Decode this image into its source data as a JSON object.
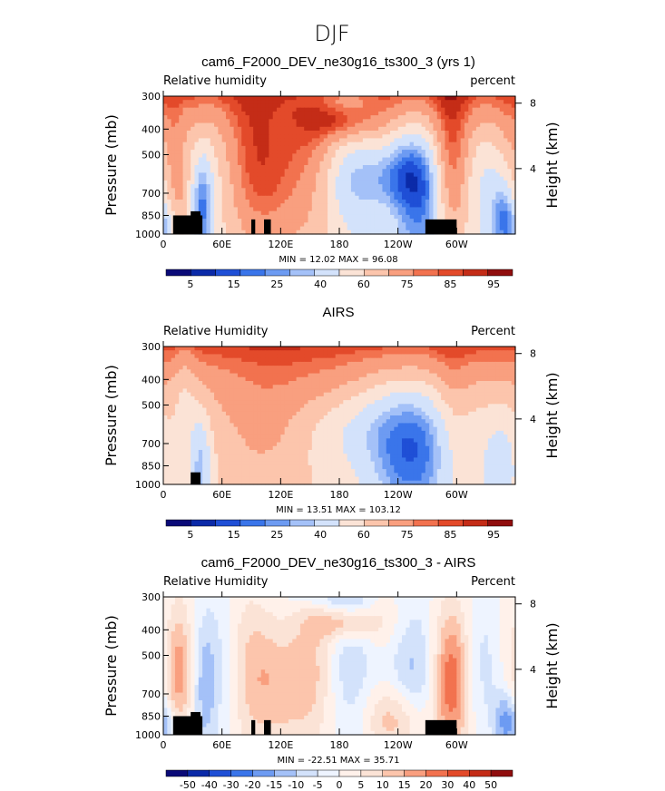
{
  "figure_title": "DJF",
  "colors": {
    "model_obs_scale": [
      "#0a0a78",
      "#0b2aa8",
      "#1f4fd6",
      "#3a75ea",
      "#6d9bf2",
      "#a4c1f8",
      "#d3e2fb",
      "#fbe3d6",
      "#fcc5ac",
      "#f99f7f",
      "#f2724f",
      "#e34a2a",
      "#c42c17",
      "#900e0e"
    ],
    "diff_scale": [
      "#0a0a78",
      "#0b2aa8",
      "#1f4fd6",
      "#3a75ea",
      "#6d9bf2",
      "#a4c1f8",
      "#d3e2fb",
      "#eef4ff",
      "#fff1ea",
      "#fbe3d6",
      "#fcc5ac",
      "#f99f7f",
      "#f2724f",
      "#e34a2a",
      "#c42c17",
      "#900e0e"
    ],
    "land": "#000000"
  },
  "chart_data": [
    {
      "type": "heatmap",
      "title": "cam6_F2000_DEV_ne30g16_ts300_3 (yrs 1)",
      "left_label": "Relative humidity",
      "right_label": "percent",
      "ylabel": "Pressure (mb)",
      "y2label": "Height (km)",
      "xlim": [
        0,
        360
      ],
      "ylim": [
        1000,
        300
      ],
      "x_ticks": [
        "0",
        "60E",
        "120E",
        "180",
        "120W",
        "60W"
      ],
      "x_tick_values": [
        0,
        60,
        120,
        180,
        240,
        300
      ],
      "y_ticks": [
        "300",
        "400",
        "500",
        "700",
        "850",
        "1000"
      ],
      "y_tick_values": [
        300,
        400,
        500,
        700,
        850,
        1000
      ],
      "y2_ticks": [
        "8",
        "4"
      ],
      "y2_tick_values": [
        8,
        4
      ],
      "min_max_text": "MIN =   12.02   MAX =   96.08",
      "min": 12.02,
      "max": 96.08,
      "colorbar_levels": [
        "5",
        "15",
        "25",
        "40",
        "60",
        "75",
        "85",
        "95"
      ],
      "colorbar_levels_full": [
        5,
        10,
        15,
        20,
        25,
        30,
        40,
        50,
        60,
        70,
        75,
        80,
        85,
        90,
        95
      ],
      "field": "model",
      "terrain": [
        [
          10,
          40,
          850
        ],
        [
          28,
          38,
          820
        ],
        [
          90,
          94,
          880
        ],
        [
          103,
          110,
          880
        ],
        [
          268,
          300,
          880
        ]
      ]
    },
    {
      "type": "heatmap",
      "title": "AIRS",
      "left_label": "Relative Humidity",
      "right_label": "Percent",
      "ylabel": "Pressure (mb)",
      "y2label": "Height (km)",
      "xlim": [
        0,
        360
      ],
      "ylim": [
        1000,
        300
      ],
      "x_ticks": [
        "0",
        "60E",
        "120E",
        "180",
        "120W",
        "60W"
      ],
      "x_tick_values": [
        0,
        60,
        120,
        180,
        240,
        300
      ],
      "y_ticks": [
        "300",
        "400",
        "500",
        "700",
        "850",
        "1000"
      ],
      "y_tick_values": [
        300,
        400,
        500,
        700,
        850,
        1000
      ],
      "y2_ticks": [
        "8",
        "4"
      ],
      "y2_tick_values": [
        8,
        4
      ],
      "min_max_text": "MIN =   13.51   MAX =  103.12",
      "min": 13.51,
      "max": 103.12,
      "colorbar_levels": [
        "5",
        "15",
        "25",
        "40",
        "60",
        "75",
        "85",
        "95"
      ],
      "colorbar_levels_full": [
        5,
        10,
        15,
        20,
        25,
        30,
        40,
        50,
        60,
        70,
        75,
        80,
        85,
        90,
        95
      ],
      "field": "obs",
      "terrain": [
        [
          28,
          38,
          900
        ]
      ]
    },
    {
      "type": "heatmap",
      "title": "cam6_F2000_DEV_ne30g16_ts300_3 - AIRS",
      "left_label": "Relative Humidity",
      "right_label": "Percent",
      "ylabel": "Pressure (mb)",
      "y2label": "Height (km)",
      "xlim": [
        0,
        360
      ],
      "ylim": [
        1000,
        300
      ],
      "x_ticks": [
        "0",
        "60E",
        "120E",
        "180",
        "120W",
        "60W"
      ],
      "x_tick_values": [
        0,
        60,
        120,
        180,
        240,
        300
      ],
      "y_ticks": [
        "300",
        "400",
        "500",
        "700",
        "850",
        "1000"
      ],
      "y_tick_values": [
        300,
        400,
        500,
        700,
        850,
        1000
      ],
      "y2_ticks": [
        "8",
        "4"
      ],
      "y2_tick_values": [
        8,
        4
      ],
      "min_max_text": "MIN =  -22.51   MAX =   35.71",
      "min": -22.51,
      "max": 35.71,
      "colorbar_levels": [
        "-50",
        "-40",
        "-30",
        "-20",
        "-15",
        "-10",
        "-5",
        "0",
        "5",
        "10",
        "15",
        "20",
        "30",
        "40",
        "50"
      ],
      "colorbar_levels_full": [
        -50,
        -40,
        -30,
        -20,
        -15,
        -10,
        -5,
        0,
        5,
        10,
        15,
        20,
        30,
        40,
        50
      ],
      "field": "diff",
      "terrain": [
        [
          10,
          40,
          850
        ],
        [
          28,
          38,
          820
        ],
        [
          90,
          94,
          880
        ],
        [
          103,
          110,
          880
        ],
        [
          268,
          300,
          880
        ]
      ]
    }
  ]
}
